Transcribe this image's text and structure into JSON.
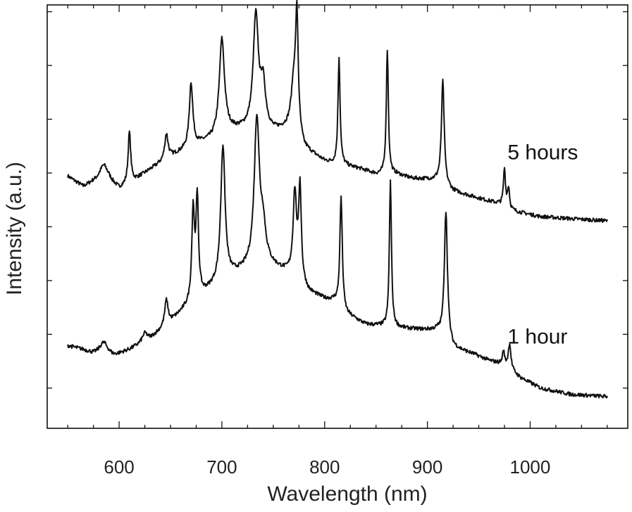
{
  "chart_data": {
    "type": "line",
    "title": "",
    "xlabel": "Wavelength (nm)",
    "ylabel": "Intensity (a.u.)",
    "xlim": [
      530,
      1095
    ],
    "ylim": [
      0,
      1
    ],
    "x_ticks": [
      600,
      700,
      800,
      900,
      1000
    ],
    "x_tick_labels": [
      "600",
      "700",
      "800",
      "900",
      "1000"
    ],
    "x_minor_step": 25,
    "y_minor_ticks": [
      0.095,
      0.222,
      0.349,
      0.476,
      0.603,
      0.73,
      0.857,
      0.984
    ],
    "y_tick_labels_shown": false,
    "grid": false,
    "legend": "none (series labelled on curves)",
    "series": [
      {
        "name": "5 hours",
        "label_anchor": [
          978,
          0.635
        ],
        "baseline": [
          [
            550,
            0.595
          ],
          [
            565,
            0.57
          ],
          [
            575,
            0.58
          ],
          [
            590,
            0.582
          ],
          [
            600,
            0.565
          ],
          [
            615,
            0.585
          ],
          [
            630,
            0.61
          ],
          [
            650,
            0.64
          ],
          [
            670,
            0.665
          ],
          [
            690,
            0.68
          ],
          [
            705,
            0.7
          ],
          [
            720,
            0.705
          ],
          [
            735,
            0.71
          ],
          [
            750,
            0.7
          ],
          [
            770,
            0.71
          ],
          [
            780,
            0.66
          ],
          [
            790,
            0.645
          ],
          [
            800,
            0.63
          ],
          [
            808,
            0.625
          ],
          [
            820,
            0.62
          ],
          [
            835,
            0.612
          ],
          [
            850,
            0.6
          ],
          [
            870,
            0.6
          ],
          [
            885,
            0.59
          ],
          [
            900,
            0.588
          ],
          [
            910,
            0.585
          ],
          [
            925,
            0.56
          ],
          [
            940,
            0.55
          ],
          [
            955,
            0.54
          ],
          [
            970,
            0.53
          ],
          [
            980,
            0.515
          ],
          [
            990,
            0.51
          ],
          [
            1010,
            0.5
          ],
          [
            1040,
            0.495
          ],
          [
            1075,
            0.49
          ]
        ],
        "peaks": [
          [
            585,
            0.04,
            5
          ],
          [
            610,
            0.12,
            1.5
          ],
          [
            646,
            0.06,
            2
          ],
          [
            670,
            0.15,
            2
          ],
          [
            700,
            0.225,
            3
          ],
          [
            733,
            0.26,
            3
          ],
          [
            740,
            0.1,
            3
          ],
          [
            770,
            0.1,
            3
          ],
          [
            773,
            0.26,
            1.5
          ],
          [
            814,
            0.255,
            1.2
          ],
          [
            861,
            0.295,
            1.2
          ],
          [
            915,
            0.245,
            1.6
          ],
          [
            975,
            0.09,
            1.2
          ],
          [
            979,
            0.05,
            1.2
          ]
        ]
      },
      {
        "name": "1 hour",
        "label_anchor": [
          978,
          0.2
        ],
        "baseline": [
          [
            550,
            0.195
          ],
          [
            565,
            0.185
          ],
          [
            575,
            0.175
          ],
          [
            595,
            0.17
          ],
          [
            610,
            0.185
          ],
          [
            630,
            0.21
          ],
          [
            650,
            0.25
          ],
          [
            670,
            0.295
          ],
          [
            690,
            0.33
          ],
          [
            710,
            0.36
          ],
          [
            730,
            0.38
          ],
          [
            745,
            0.385
          ],
          [
            760,
            0.37
          ],
          [
            770,
            0.36
          ],
          [
            785,
            0.32
          ],
          [
            800,
            0.305
          ],
          [
            810,
            0.3
          ],
          [
            820,
            0.27
          ],
          [
            840,
            0.245
          ],
          [
            860,
            0.24
          ],
          [
            880,
            0.235
          ],
          [
            900,
            0.232
          ],
          [
            910,
            0.23
          ],
          [
            925,
            0.19
          ],
          [
            945,
            0.175
          ],
          [
            960,
            0.16
          ],
          [
            975,
            0.15
          ],
          [
            990,
            0.12
          ],
          [
            1010,
            0.095
          ],
          [
            1040,
            0.08
          ],
          [
            1075,
            0.075
          ]
        ],
        "peaks": [
          [
            585,
            0.03,
            5
          ],
          [
            625,
            0.02,
            3
          ],
          [
            646,
            0.06,
            2
          ],
          [
            672,
            0.21,
            1.5
          ],
          [
            676,
            0.23,
            1.5
          ],
          [
            701,
            0.32,
            2.5
          ],
          [
            734,
            0.345,
            3
          ],
          [
            740,
            0.08,
            3
          ],
          [
            771,
            0.195,
            2
          ],
          [
            776,
            0.22,
            1.5
          ],
          [
            816,
            0.265,
            1.4
          ],
          [
            864,
            0.345,
            1.2
          ],
          [
            918,
            0.305,
            1.8
          ],
          [
            974,
            0.03,
            1.2
          ],
          [
            980,
            0.06,
            1.5
          ]
        ]
      }
    ]
  }
}
